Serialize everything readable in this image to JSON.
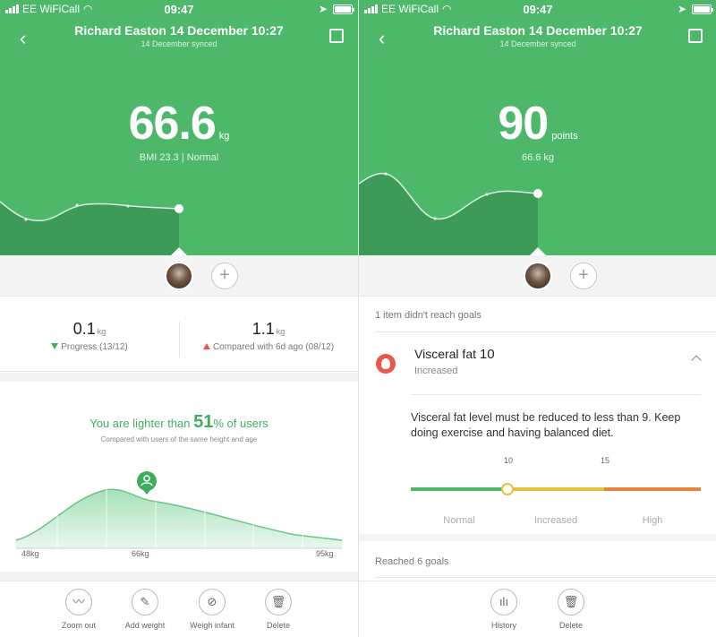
{
  "status": {
    "carrier": "EE WiFiCall",
    "time": "09:47"
  },
  "left": {
    "header": {
      "title": "Richard Easton 14 December 10:27",
      "subtitle": "14 December synced"
    },
    "main": {
      "value": "66.6",
      "unit": "kg",
      "desc": "BMI 23.3 | Normal"
    },
    "stats": [
      {
        "value": "0.1",
        "unit": "kg",
        "label": "Progress (13/12)",
        "direction": "down"
      },
      {
        "value": "1.1",
        "unit": "kg",
        "label": "Compared with 6d ago (08/12)",
        "direction": "up"
      }
    ],
    "comparison": {
      "prefix": "You are lighter than ",
      "percent": "51",
      "suffix": "% of users",
      "subtitle": "Compared with users of the same height and age"
    },
    "distribution": {
      "min_label": "48kg",
      "mid_label": "66kg",
      "max_label": "95kg"
    },
    "toolbar": [
      {
        "label": "Zoom out",
        "icon": "waveform-icon"
      },
      {
        "label": "Add weight",
        "icon": "edit-icon"
      },
      {
        "label": "Weigh infant",
        "icon": "infant-icon"
      },
      {
        "label": "Delete",
        "icon": "trash-icon"
      }
    ]
  },
  "right": {
    "header": {
      "title": "Richard Easton 14 December 10:27",
      "subtitle": "14 December synced"
    },
    "main": {
      "value": "90",
      "unit": "points",
      "desc": "66.6 kg"
    },
    "goals_header": "1 item didn't reach goals",
    "item": {
      "name": "Visceral fat",
      "value": "10",
      "status": "Increased"
    },
    "advice": "Visceral fat level must be reduced to less than 9. Keep doing exercise and having balanced diet.",
    "scale": {
      "tick1": "10",
      "tick2": "15",
      "zones": [
        "Normal",
        "Increased",
        "High"
      ],
      "current": 10
    },
    "reached": "Reached 6 goals",
    "toolbar": [
      {
        "label": "History",
        "icon": "bar-chart-icon"
      },
      {
        "label": "Delete",
        "icon": "trash-icon"
      }
    ]
  },
  "colors": {
    "green": "#4db86a",
    "red": "#e9584a",
    "yellow": "#e7c23e",
    "orange": "#e8843a"
  }
}
